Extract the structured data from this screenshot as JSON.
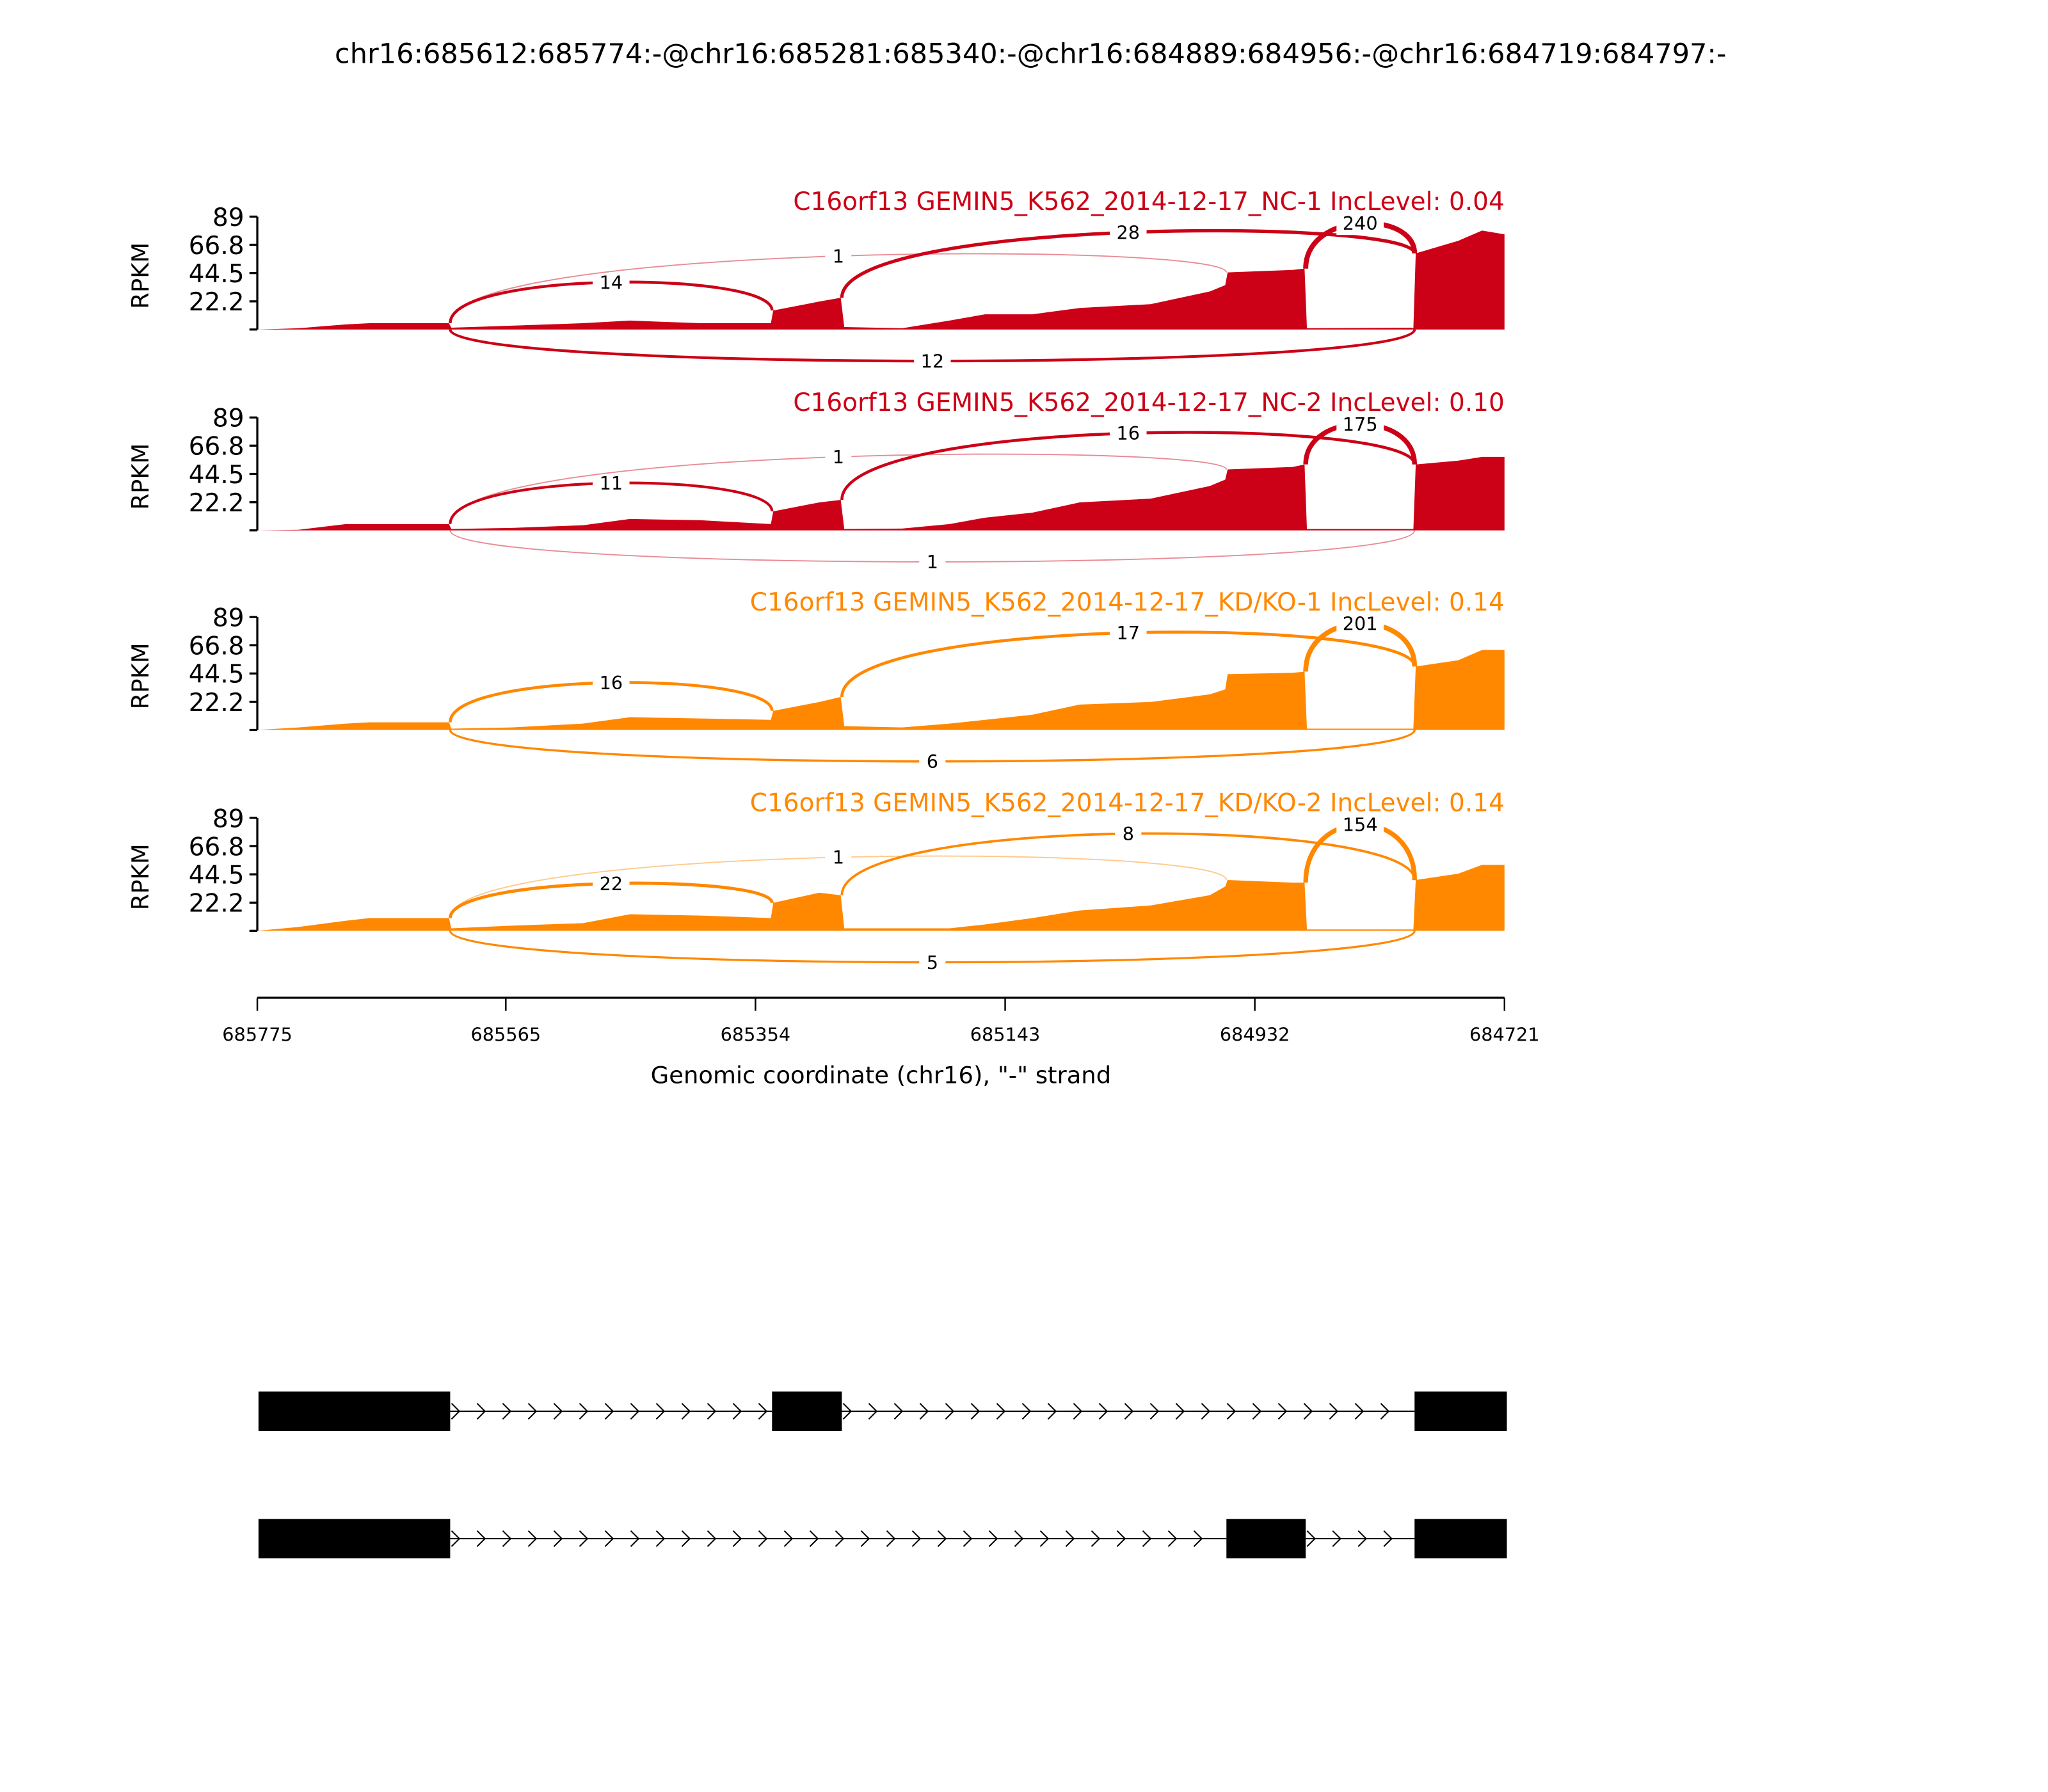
{
  "chart_data": {
    "type": "area",
    "title": "chr16:685612:685774:-@chr16:685281:685340:-@chr16:684889:684956:-@chr16:684719:684797:-",
    "xlabel": "Genomic coordinate (chr16), \"-\" strand",
    "ylabel": "RPKM",
    "xlim": [
      685775,
      684721
    ],
    "xticks": [
      "685775",
      "685565",
      "685354",
      "685143",
      "684932",
      "684721"
    ],
    "ylim": [
      0,
      89
    ],
    "yticks": [
      "22.2",
      "44.5",
      "66.8",
      "89"
    ],
    "positions": [
      685775,
      685740,
      685700,
      685680,
      685613,
      685611,
      685560,
      685500,
      685460,
      685400,
      685341,
      685339,
      685300,
      685282,
      685279,
      685230,
      685190,
      685160,
      685120,
      685080,
      685020,
      684970,
      684957,
      684955,
      684900,
      684890,
      684888,
      684800,
      684798,
      684796,
      684760,
      684740,
      684721
    ],
    "samples": [
      {
        "name": "C16orf13 GEMIN5_K562_2014-12-17_NC-1 IncLevel: 0.04",
        "color": "#cc0016",
        "values": [
          0,
          1,
          4,
          5,
          5,
          1.5,
          3,
          5,
          7,
          5,
          5,
          15,
          22,
          25,
          2,
          1,
          7,
          12,
          12,
          17,
          20,
          30,
          35,
          45,
          47,
          48,
          1,
          1.5,
          1,
          60,
          70,
          78,
          75
        ],
        "junctions": [
          {
            "from": 685612,
            "to": 685340,
            "count": "14",
            "side": "above"
          },
          {
            "from": 685612,
            "to": 684956,
            "count": "1",
            "side": "above"
          },
          {
            "from": 685281,
            "to": 684797,
            "count": "28",
            "side": "above"
          },
          {
            "from": 684889,
            "to": 684797,
            "count": "240",
            "side": "above"
          },
          {
            "from": 685612,
            "to": 684797,
            "count": "12",
            "side": "below"
          }
        ]
      },
      {
        "name": "C16orf13 GEMIN5_K562_2014-12-17_NC-2 IncLevel: 0.10",
        "color": "#cc0016",
        "values": [
          0,
          0.5,
          5,
          5,
          5,
          1,
          2,
          4,
          9,
          8,
          5,
          15,
          22,
          24,
          1,
          1.5,
          5,
          10,
          14,
          22,
          25,
          35,
          40,
          48,
          50,
          52,
          1,
          1,
          1,
          52,
          55,
          58,
          58
        ],
        "junctions": [
          {
            "from": 685612,
            "to": 685340,
            "count": "11",
            "side": "above"
          },
          {
            "from": 685612,
            "to": 684956,
            "count": "1",
            "side": "above"
          },
          {
            "from": 685281,
            "to": 684797,
            "count": "16",
            "side": "above"
          },
          {
            "from": 684889,
            "to": 684797,
            "count": "175",
            "side": "above"
          },
          {
            "from": 685612,
            "to": 684797,
            "count": "1",
            "side": "below"
          }
        ]
      },
      {
        "name": "C16orf13 GEMIN5_K562_2014-12-17_KD/KO-1 IncLevel: 0.14",
        "color": "#ff8800",
        "values": [
          0,
          2,
          5,
          6,
          6,
          1,
          2,
          5,
          10,
          9,
          8,
          15,
          22,
          26,
          3,
          2,
          5,
          8,
          12,
          20,
          22,
          28,
          32,
          44,
          45,
          46,
          1,
          1,
          1,
          50,
          55,
          63,
          63
        ],
        "junctions": [
          {
            "from": 685612,
            "to": 685340,
            "count": "16",
            "side": "above"
          },
          {
            "from": 685281,
            "to": 684797,
            "count": "17",
            "side": "above"
          },
          {
            "from": 684889,
            "to": 684797,
            "count": "201",
            "side": "above"
          },
          {
            "from": 685612,
            "to": 684797,
            "count": "6",
            "side": "below"
          }
        ]
      },
      {
        "name": "C16orf13 GEMIN5_K562_2014-12-17_KD/KO-2 IncLevel: 0.14",
        "color": "#ff8800",
        "values": [
          0,
          3,
          8,
          10,
          10,
          2,
          4,
          6,
          13,
          12,
          10,
          22,
          30,
          28,
          2,
          2,
          2,
          5,
          10,
          16,
          20,
          28,
          35,
          40,
          38,
          38,
          1,
          1,
          1,
          40,
          45,
          52,
          52
        ],
        "junctions": [
          {
            "from": 685612,
            "to": 685340,
            "count": "22",
            "side": "above"
          },
          {
            "from": 685612,
            "to": 684956,
            "count": "1",
            "side": "above"
          },
          {
            "from": 685281,
            "to": 684797,
            "count": "8",
            "side": "above"
          },
          {
            "from": 684889,
            "to": 684797,
            "count": "154",
            "side": "above"
          },
          {
            "from": 685612,
            "to": 684797,
            "count": "5",
            "side": "below"
          }
        ]
      }
    ],
    "transcripts": [
      {
        "exons": [
          [
            685774,
            685612
          ],
          [
            685340,
            685281
          ],
          [
            684797,
            684719
          ]
        ]
      },
      {
        "exons": [
          [
            685774,
            685612
          ],
          [
            684956,
            684889
          ],
          [
            684797,
            684719
          ]
        ]
      }
    ]
  }
}
